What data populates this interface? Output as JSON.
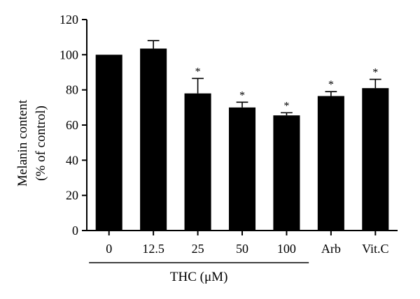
{
  "chart_data": {
    "type": "bar",
    "title": "",
    "xlabel": "",
    "ylabel_lines": [
      "Melanin content",
      "(% of control)"
    ],
    "categories": [
      "0",
      "12.5",
      "25",
      "50",
      "100",
      "Arb",
      "Vit.C"
    ],
    "values": [
      100,
      103.5,
      78,
      70,
      65.5,
      76.5,
      81
    ],
    "errors": [
      0,
      4.5,
      8.5,
      3,
      1.5,
      2.5,
      5
    ],
    "significance": [
      "",
      "",
      "*",
      "*",
      "*",
      "*",
      "*"
    ],
    "group_label": "THC (μM)",
    "group_categories": [
      "0",
      "12.5",
      "25",
      "50",
      "100"
    ],
    "ylim": [
      0,
      120
    ],
    "yticks": [
      0,
      20,
      40,
      60,
      80,
      100,
      120
    ],
    "grid": false,
    "bar_color": "#000000"
  }
}
